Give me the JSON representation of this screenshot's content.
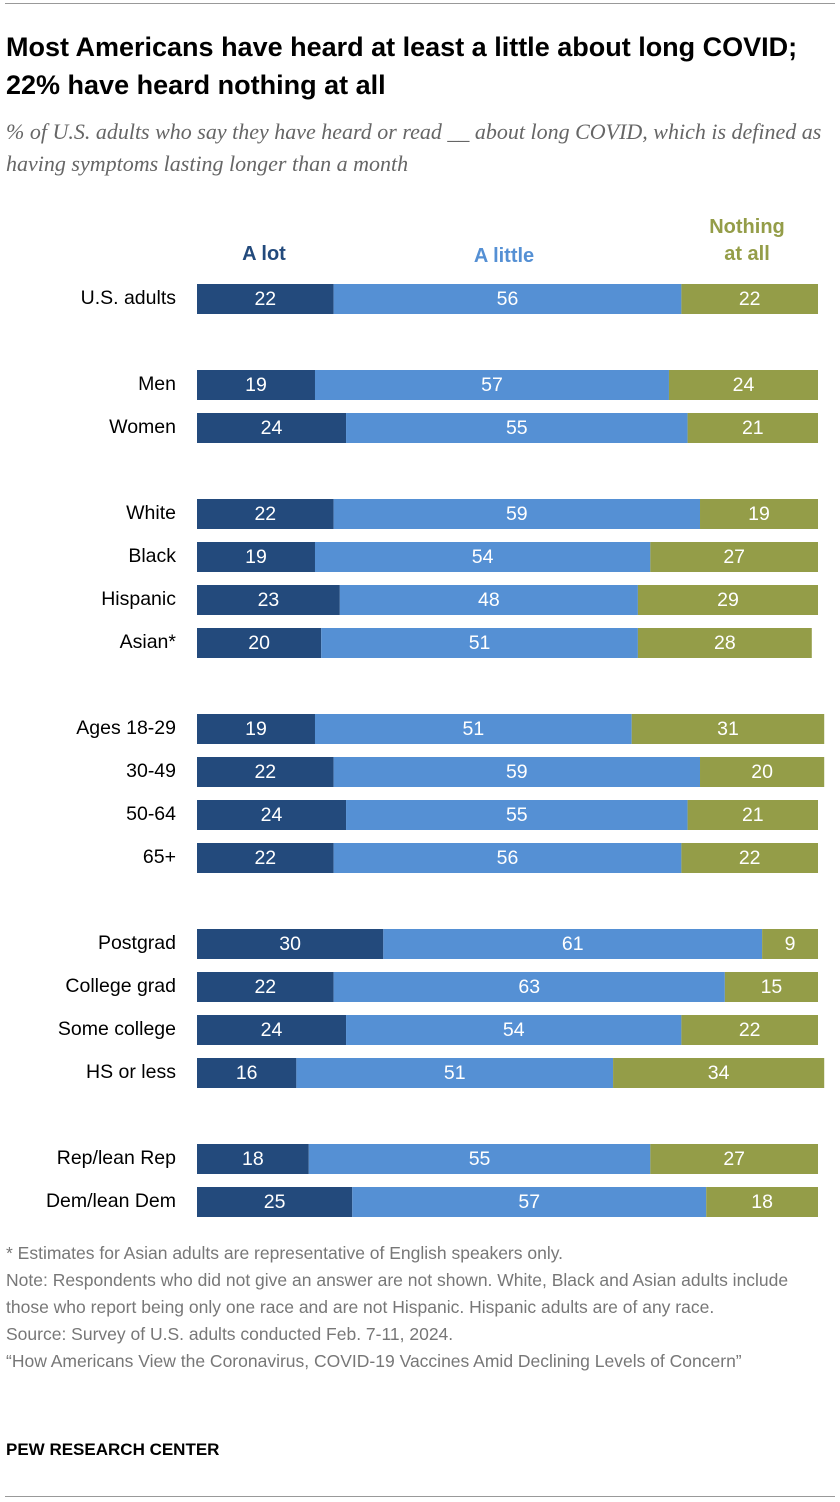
{
  "chart_data": {
    "type": "stacked-bar",
    "title": "Most Americans have heard at least a little about long COVID; 22% have heard nothing at all",
    "subtitle": "% of U.S. adults who say they have heard or read __ about long COVID, which is defined as having symptoms lasting longer than a month",
    "categories": [
      "U.S. adults",
      "Men",
      "Women",
      "White",
      "Black",
      "Hispanic",
      "Asian*",
      "Ages 18-29",
      "30-49",
      "50-64",
      "65+",
      "Postgrad",
      "College grad",
      "Some college",
      "HS or less",
      "Rep/lean Rep",
      "Dem/lean Dem"
    ],
    "series": [
      {
        "name": "A lot",
        "color": "#234a7c",
        "values": [
          22,
          19,
          24,
          22,
          19,
          23,
          20,
          19,
          22,
          24,
          22,
          30,
          22,
          24,
          16,
          18,
          25
        ]
      },
      {
        "name": "A little",
        "color": "#5590d4",
        "values": [
          56,
          57,
          55,
          59,
          54,
          48,
          51,
          51,
          59,
          55,
          56,
          61,
          63,
          54,
          51,
          55,
          57
        ]
      },
      {
        "name": "Nothing at all",
        "color": "#949d48",
        "values": [
          22,
          24,
          21,
          19,
          27,
          29,
          28,
          31,
          20,
          21,
          22,
          9,
          15,
          22,
          34,
          27,
          18
        ]
      }
    ],
    "notes": [
      "* Estimates for Asian adults are representative of English speakers only.",
      "Note: Respondents who did not give an answer are not shown. White, Black and Asian adults include those who report being only one race and are not Hispanic. Hispanic adults are of any race.",
      "Source: Survey of U.S. adults conducted Feb. 7-11, 2024.",
      "“How Americans View the Coronavirus, COVID-19 Vaccines Amid Declining Levels of Concern”"
    ],
    "source": "PEW RESEARCH CENTER"
  }
}
